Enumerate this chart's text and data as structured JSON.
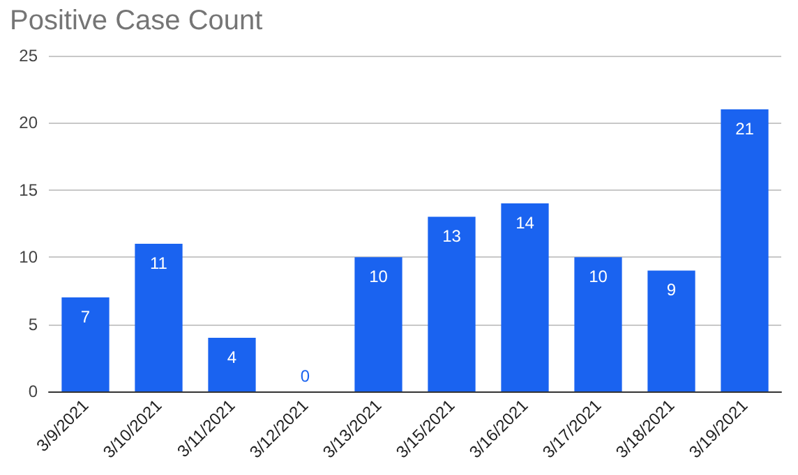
{
  "chart_data": {
    "type": "bar",
    "title": "Positive Case Count",
    "categories": [
      "3/9/2021",
      "3/10/2021",
      "3/11/2021",
      "3/12/2021",
      "3/13/2021",
      "3/15/2021",
      "3/16/2021",
      "3/17/2021",
      "3/18/2021",
      "3/19/2021"
    ],
    "values": [
      7,
      11,
      4,
      0,
      10,
      13,
      14,
      10,
      9,
      21
    ],
    "color": "#1a63f0",
    "ylim": [
      0,
      25
    ],
    "yticks": [
      0,
      5,
      10,
      15,
      20,
      25
    ],
    "grid": "y",
    "data_labels": true
  }
}
